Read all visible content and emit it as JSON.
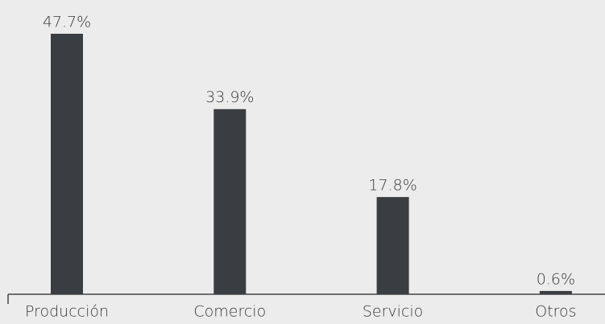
{
  "chart_data": {
    "type": "bar",
    "categories": [
      "Producción",
      "Comercio",
      "Servicio",
      "Otros"
    ],
    "values": [
      47.7,
      33.9,
      17.8,
      0.6
    ],
    "value_labels": [
      "47.7%",
      "33.9%",
      "17.8%",
      "0.6%"
    ],
    "color": "#3a3d42"
  }
}
